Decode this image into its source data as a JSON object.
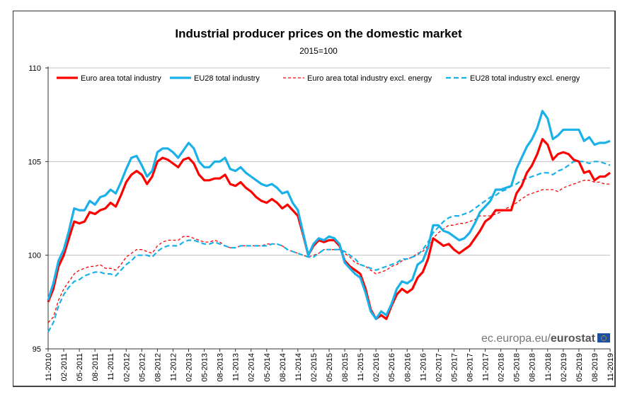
{
  "chart_data": {
    "type": "line",
    "title": "Industrial producer prices on the domestic market",
    "subtitle": "2015=100",
    "xlabel": "",
    "ylabel": "",
    "ylim": [
      95,
      110
    ],
    "yticks": [
      95,
      100,
      105,
      110
    ],
    "grid": "horizontal",
    "legend_position": "top",
    "frequency": "monthly",
    "tick_labels": [
      "11-2010",
      "02-2011",
      "05-2011",
      "08-2011",
      "11-2011",
      "02-2012",
      "05-2012",
      "08-2012",
      "11-2012",
      "02-2013",
      "05-2013",
      "08-2013",
      "11-2013",
      "02-2014",
      "05-2014",
      "08-2014",
      "11-2014",
      "02-2015",
      "05-2015",
      "08-2015",
      "11-2015",
      "02-2016",
      "05-2016",
      "08-2016",
      "11-2016",
      "02-2017",
      "05-2017",
      "08-2017",
      "11-2017",
      "02-2018",
      "05-2018",
      "08-2018",
      "11-2018",
      "02-2019",
      "05-2019",
      "08-2019",
      "11-2019"
    ],
    "series": [
      {
        "name": "Euro area total industry",
        "color": "#ff0000",
        "style": "solid",
        "values": [
          97.5,
          98.2,
          99.4,
          100.0,
          100.9,
          101.8,
          101.7,
          101.8,
          102.3,
          102.2,
          102.4,
          102.5,
          102.8,
          102.6,
          103.2,
          103.9,
          104.3,
          104.5,
          104.3,
          103.8,
          104.2,
          105.0,
          105.2,
          105.1,
          104.9,
          104.7,
          105.1,
          105.2,
          104.9,
          104.3,
          104.0,
          104.0,
          104.1,
          104.1,
          104.3,
          103.8,
          103.7,
          103.9,
          103.6,
          103.4,
          103.1,
          102.9,
          102.8,
          103.0,
          102.8,
          102.5,
          102.7,
          102.4,
          102.1,
          101.1,
          100.0,
          100.5,
          100.8,
          100.7,
          100.8,
          100.8,
          100.5,
          99.7,
          99.4,
          99.2,
          99.0,
          98.2,
          97.1,
          96.6,
          96.8,
          96.6,
          97.3,
          97.9,
          98.2,
          98.0,
          98.2,
          98.8,
          99.1,
          99.8,
          100.9,
          100.7,
          100.5,
          100.6,
          100.3,
          100.1,
          100.3,
          100.5,
          100.9,
          101.3,
          101.8,
          102.0,
          102.4,
          102.4,
          102.4,
          102.4,
          103.3,
          103.7,
          104.4,
          104.8,
          105.4,
          106.2,
          105.9,
          105.1,
          105.4,
          105.5,
          105.4,
          105.1,
          105.0,
          104.4,
          104.5,
          104.0,
          104.2,
          104.2,
          104.4
        ]
      },
      {
        "name": "EU28 total industry",
        "color": "#1ab0e8",
        "style": "solid",
        "values": [
          97.6,
          98.5,
          99.7,
          100.3,
          101.3,
          102.5,
          102.4,
          102.4,
          102.9,
          102.7,
          103.1,
          103.2,
          103.5,
          103.3,
          103.9,
          104.6,
          105.2,
          105.3,
          104.8,
          104.2,
          104.5,
          105.5,
          105.7,
          105.7,
          105.5,
          105.2,
          105.6,
          106.0,
          105.7,
          105.0,
          104.7,
          104.7,
          105.0,
          105.0,
          105.2,
          104.6,
          104.5,
          104.7,
          104.4,
          104.2,
          104.0,
          103.8,
          103.7,
          103.8,
          103.6,
          103.3,
          103.4,
          102.8,
          102.4,
          101.2,
          100.0,
          100.6,
          100.9,
          100.8,
          101.0,
          100.9,
          100.6,
          99.6,
          99.3,
          99.0,
          98.8,
          98.0,
          97.0,
          96.6,
          97.0,
          96.8,
          97.4,
          98.2,
          98.6,
          98.5,
          98.7,
          99.5,
          99.7,
          100.4,
          101.6,
          101.6,
          101.3,
          101.2,
          101.0,
          100.8,
          100.9,
          101.2,
          101.7,
          102.3,
          102.6,
          102.9,
          103.5,
          103.5,
          103.6,
          103.7,
          104.6,
          105.2,
          105.8,
          106.2,
          106.8,
          107.7,
          107.3,
          106.2,
          106.4,
          106.7,
          106.7,
          106.7,
          106.7,
          106.1,
          106.3,
          105.9,
          106.0,
          106.0,
          106.1
        ]
      },
      {
        "name": "Euro area total industry excl. energy",
        "color": "#ff0000",
        "style": "dashed-thin",
        "values": [
          96.4,
          96.7,
          97.6,
          98.2,
          98.6,
          99.0,
          99.2,
          99.3,
          99.4,
          99.4,
          99.5,
          99.3,
          99.3,
          99.2,
          99.5,
          99.9,
          100.1,
          100.3,
          100.3,
          100.2,
          100.1,
          100.5,
          100.7,
          100.8,
          100.8,
          100.8,
          101.0,
          101.0,
          100.9,
          100.8,
          100.7,
          100.7,
          100.8,
          100.7,
          100.5,
          100.4,
          100.4,
          100.5,
          100.5,
          100.5,
          100.5,
          100.5,
          100.6,
          100.6,
          100.6,
          100.5,
          100.3,
          100.2,
          100.1,
          100.0,
          99.9,
          100.0,
          100.1,
          100.3,
          100.3,
          100.3,
          100.3,
          100.1,
          99.9,
          99.6,
          99.5,
          99.4,
          99.2,
          99.0,
          99.1,
          99.2,
          99.4,
          99.5,
          99.7,
          99.8,
          99.9,
          100.1,
          100.2,
          100.5,
          100.9,
          101.2,
          101.4,
          101.6,
          101.6,
          101.7,
          101.7,
          101.8,
          101.9,
          102.1,
          102.1,
          102.1,
          102.2,
          102.3,
          102.5,
          102.6,
          102.8,
          103.0,
          103.2,
          103.3,
          103.4,
          103.5,
          103.5,
          103.5,
          103.4,
          103.6,
          103.7,
          103.8,
          103.9,
          104.0,
          104.0,
          103.9,
          103.9,
          103.8,
          103.8
        ]
      },
      {
        "name": "EU28 total industry excl. energy",
        "color": "#1ab0e8",
        "style": "dashed",
        "values": [
          95.9,
          96.4,
          97.3,
          97.9,
          98.3,
          98.6,
          98.7,
          98.9,
          99.0,
          99.1,
          99.1,
          99.0,
          99.0,
          98.9,
          99.2,
          99.5,
          99.7,
          100.0,
          100.0,
          100.0,
          99.9,
          100.2,
          100.4,
          100.5,
          100.5,
          100.5,
          100.7,
          100.8,
          100.8,
          100.7,
          100.6,
          100.6,
          100.7,
          100.6,
          100.5,
          100.4,
          100.4,
          100.5,
          100.5,
          100.5,
          100.5,
          100.5,
          100.5,
          100.6,
          100.6,
          100.5,
          100.3,
          100.2,
          100.1,
          100.0,
          99.9,
          99.9,
          100.1,
          100.3,
          100.3,
          100.3,
          100.3,
          100.2,
          100.0,
          99.8,
          99.5,
          99.4,
          99.3,
          99.2,
          99.3,
          99.4,
          99.5,
          99.6,
          99.8,
          99.8,
          99.9,
          100.0,
          100.3,
          100.7,
          101.2,
          101.5,
          101.8,
          102.0,
          102.1,
          102.1,
          102.2,
          102.3,
          102.5,
          102.7,
          102.9,
          103.1,
          103.2,
          103.4,
          103.5,
          103.7,
          103.8,
          104.0,
          104.1,
          104.2,
          104.3,
          104.4,
          104.4,
          104.3,
          104.5,
          104.6,
          104.8,
          105.0,
          105.0,
          105.0,
          104.9,
          105.0,
          105.0,
          104.9,
          104.8
        ]
      }
    ]
  },
  "watermark": {
    "site": "ec.europa.eu/",
    "brand": "eurostat"
  }
}
